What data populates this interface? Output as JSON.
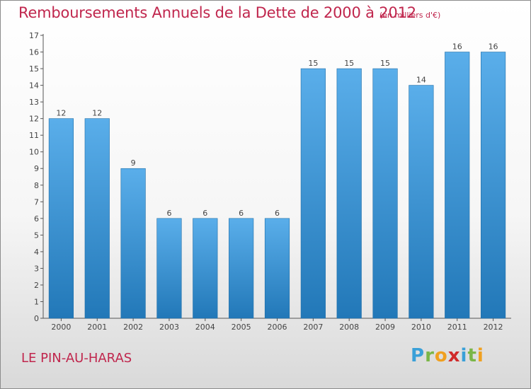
{
  "header": {
    "title": "Remboursements Annuels de la Dette de 2000 à 2012",
    "subtitle": "(en milliers d'€)"
  },
  "footer": {
    "commune": "LE PIN-AU-HARAS",
    "logo_letters": [
      "P",
      "r",
      "o",
      "x",
      "i",
      "t",
      "i"
    ]
  },
  "colors": {
    "title": "#c0264d",
    "bar_top": "#5aaeea",
    "bar_bottom": "#2278b8",
    "logo": [
      "#3aa0d8",
      "#7ab648",
      "#f0a020",
      "#d02a2a",
      "#3aa0d8",
      "#7ab648",
      "#f0a020"
    ]
  },
  "chart_data": {
    "type": "bar",
    "title": "Remboursements Annuels de la Dette de 2000 à 2012",
    "categories": [
      "2000",
      "2001",
      "2002",
      "2003",
      "2004",
      "2005",
      "2006",
      "2007",
      "2008",
      "2009",
      "2010",
      "2011",
      "2012"
    ],
    "values": [
      12,
      12,
      9,
      6,
      6,
      6,
      6,
      15,
      15,
      15,
      14,
      16,
      16
    ],
    "ylim": [
      0,
      17
    ],
    "yticks": [
      "0",
      "1",
      "2",
      "3",
      "4",
      "5",
      "6",
      "7",
      "8",
      "9",
      "10",
      "11",
      "12",
      "13",
      "14",
      "15",
      "16",
      "17"
    ],
    "grid": false,
    "legend": "none"
  }
}
